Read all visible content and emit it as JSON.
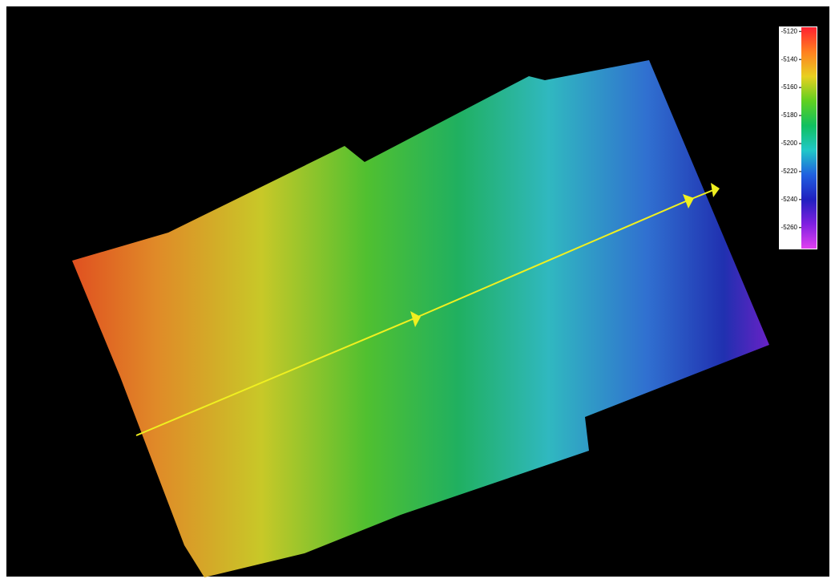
{
  "colorbar": {
    "ticks": [
      -5120,
      -5140,
      -5160,
      -5180,
      -5200,
      -5220,
      -5240,
      -5260
    ],
    "lim": [
      -5117,
      -5275
    ],
    "colors": [
      "#ff2030",
      "#ff8020",
      "#e8d020",
      "#60d020",
      "#10c060",
      "#20c8c8",
      "#2060e0",
      "#2020c0",
      "#8020e0",
      "#e040f0"
    ]
  }
}
